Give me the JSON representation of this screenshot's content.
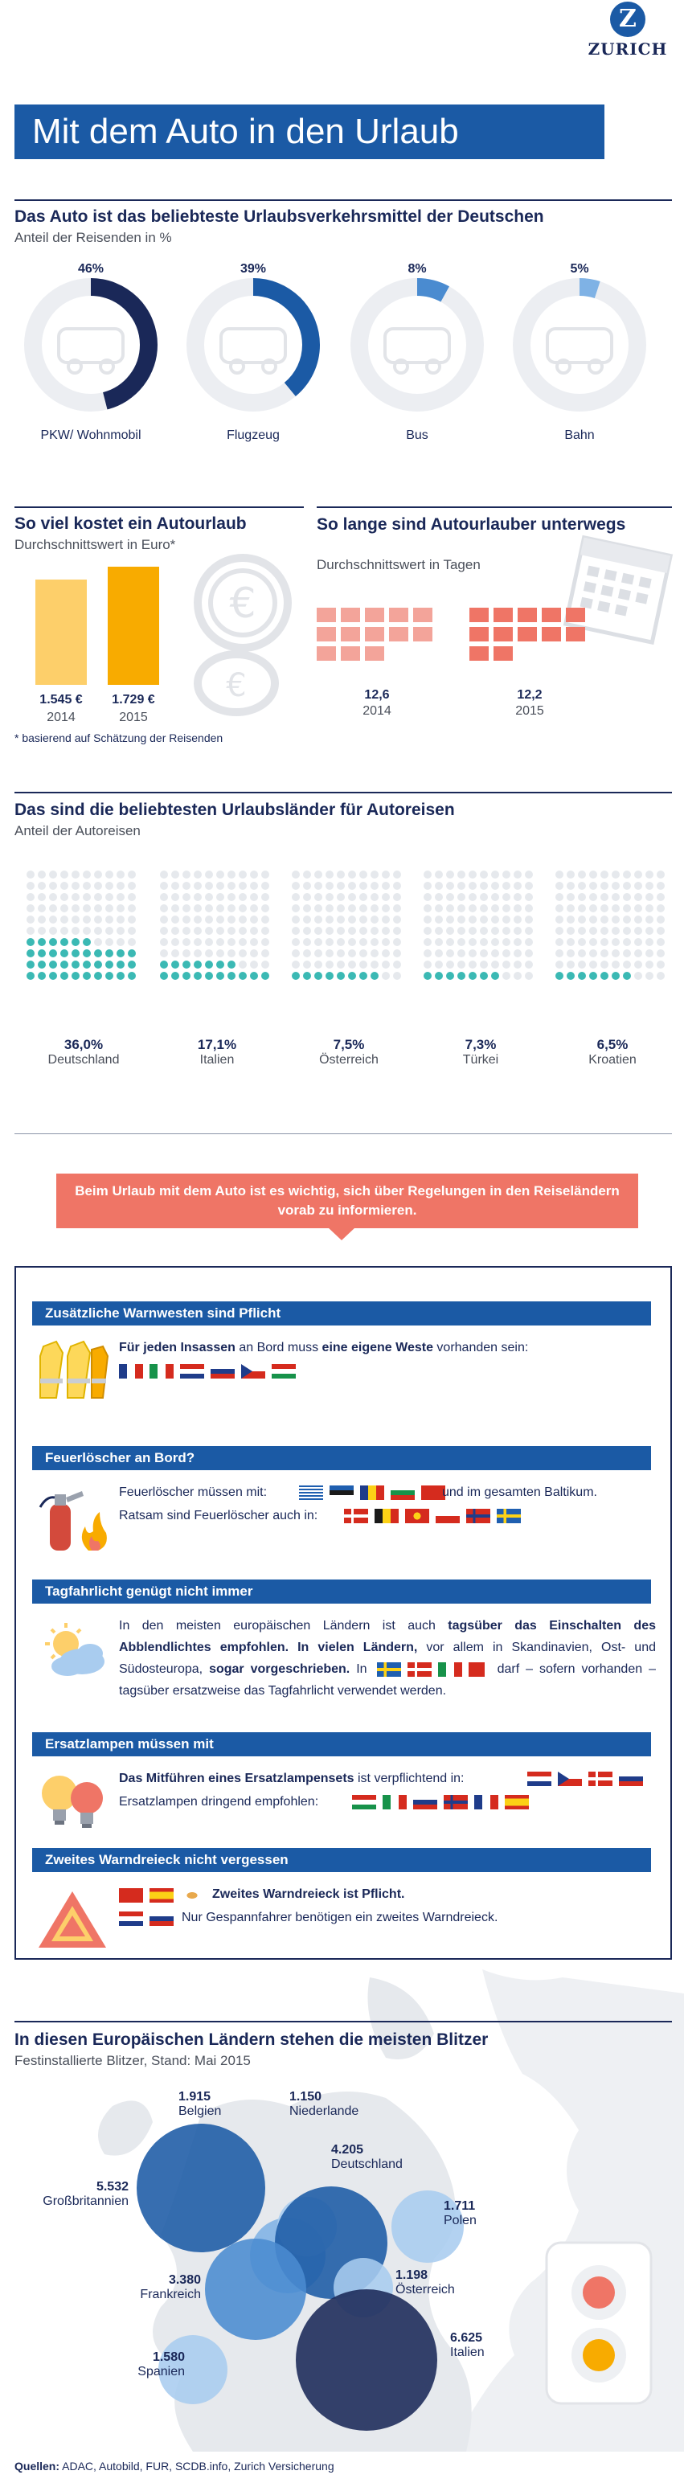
{
  "header": {
    "brand": "ZURICH",
    "logo_letter": "Z",
    "title": "Mit dem Auto in den Urlaub"
  },
  "transport": {
    "title": "Das Auto ist das beliebteste Urlaubsverkehrsmittel der Deutschen",
    "subtitle": "Anteil der Reisenden in %",
    "items": [
      {
        "label": "PKW/ Wohnmobil",
        "pct_text": "46%",
        "value": 46,
        "color": "#1a2858"
      },
      {
        "label": "Flugzeug",
        "pct_text": "39%",
        "value": 39,
        "color": "#1b5aa5"
      },
      {
        "label": "Bus",
        "pct_text": "8%",
        "value": 8,
        "color": "#4a8bd0"
      },
      {
        "label": "Bahn",
        "pct_text": "5%",
        "value": 5,
        "color": "#7fb2e5"
      }
    ]
  },
  "cost": {
    "title": "So viel kostet ein Autourlaub",
    "subtitle": "Durchschnittswert in Euro*",
    "note": "* basierend auf Schätzung der Reisenden",
    "bars": [
      {
        "value_text": "1.545 €",
        "year": "2014",
        "value": 1545,
        "color": "#fdcf6a"
      },
      {
        "value_text": "1.729 €",
        "year": "2015",
        "value": 1729,
        "color": "#f8ab00"
      }
    ]
  },
  "duration": {
    "title": "So lange sind Autourlauber unterwegs",
    "subtitle": "Durchschnittswert in Tagen",
    "items": [
      {
        "value_text": "12,6",
        "year": "2014",
        "value": 12.6,
        "color": "#f3a49a"
      },
      {
        "value_text": "12,2",
        "year": "2015",
        "value": 12.2,
        "color": "#ef7566"
      }
    ]
  },
  "countries": {
    "title": "Das sind die beliebtesten Urlaubsländer für Autoreisen",
    "subtitle": "Anteil der Autoreisen",
    "items": [
      {
        "value_text": "36,0%",
        "name": "Deutschland",
        "value": 36.0
      },
      {
        "value_text": "17,1%",
        "name": "Italien",
        "value": 17.1
      },
      {
        "value_text": "7,5%",
        "name": "Österreich",
        "value": 7.5
      },
      {
        "value_text": "7,3%",
        "name": "Türkei",
        "value": 7.3
      },
      {
        "value_text": "6,5%",
        "name": "Kroatien",
        "value": 6.5
      }
    ]
  },
  "notice": "Beim Urlaub mit dem Auto ist es wichtig, sich über Regelungen in den Reiseländern vorab zu informieren.",
  "rules": [
    {
      "heading": "Zusätzliche Warnwesten sind Pflicht",
      "text_bold1": "Für jeden Insassen",
      "text_mid": " an Bord muss ",
      "text_bold2": "eine eigene Weste",
      "text_end": " vorhanden sein:"
    },
    {
      "heading": "Feuerlöscher an Bord?",
      "line1_start": "Feuerlöscher müssen mit:",
      "line1_end": "und im gesamten Baltikum.",
      "line2": "Ratsam sind Feuerlöscher auch in:"
    },
    {
      "heading": "Tagfahrlicht genügt nicht immer",
      "p1": "In den meisten europäischen Ländern ist auch ",
      "p1_bold": "tagsüber das Einschalten des Abblendlichtes empfohlen. In vielen Ländern,",
      "p2": " vor allem in Skandinavien, Ost- und Südosteuropa, ",
      "p2_bold": "sogar vorgeschrieben.",
      "p3": " In",
      "p4": "darf – sofern vorhanden – tagsüber ersatzweise das Tagfahrlicht verwendet werden."
    },
    {
      "heading": "Ersatzlampen müssen mit",
      "line1_bold": "Das Mitführen eines Ersatzlampensets",
      "line1_end": " ist verpflichtend in:",
      "line2": "Ersatzlampen dringend empfohlen:"
    },
    {
      "heading": "Zweites Warndreieck nicht vergessen",
      "line1": "Zweites Warndreieck ist Pflicht.",
      "line2": "Nur Gespannfahrer benötigen ein zweites Warndreieck."
    }
  ],
  "blitzer": {
    "title": "In diesen Europäischen Ländern stehen die meisten Blitzer",
    "subtitle": "Festinstallierte Blitzer, Stand: Mai 2015",
    "items": [
      {
        "name": "Belgien",
        "value_text": "1.915",
        "value": 1915,
        "color": "#7fb2e5"
      },
      {
        "name": "Niederlande",
        "value_text": "1.150",
        "value": 1150,
        "color": "#a9ccef"
      },
      {
        "name": "Großbritannien",
        "value_text": "5.532",
        "value": 5532,
        "color": "#1b5aa5"
      },
      {
        "name": "Deutschland",
        "value_text": "4.205",
        "value": 4205,
        "color": "#1b5aa5"
      },
      {
        "name": "Polen",
        "value_text": "1.711",
        "value": 1711,
        "color": "#a9ccef"
      },
      {
        "name": "Frankreich",
        "value_text": "3.380",
        "value": 3380,
        "color": "#4a8bd0"
      },
      {
        "name": "Österreich",
        "value_text": "1.198",
        "value": 1198,
        "color": "#a9ccef"
      },
      {
        "name": "Italien",
        "value_text": "6.625",
        "value": 6625,
        "color": "#1a2858"
      },
      {
        "name": "Spanien",
        "value_text": "1.580",
        "value": 1580,
        "color": "#a9ccef"
      }
    ]
  },
  "sources": {
    "label": "Quellen:",
    "text": " ADAC, Autobild, FUR, SCDB.info, Zurich Versicherung"
  }
}
